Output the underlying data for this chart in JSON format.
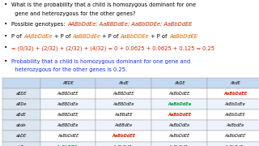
{
  "bg_color": "#ffffff",
  "text_blocks": [
    {
      "lines": [
        {
          "segs": [
            {
              "t": "What is the probability that a child is homozygous dominant for one",
              "c": "#000000",
              "i": false
            }
          ]
        },
        {
          "segs": [
            {
              "t": "  gene and heterozygous for the other genes?",
              "c": "#000000",
              "i": false
            }
          ]
        }
      ],
      "bullet": true
    },
    {
      "lines": [
        {
          "segs": [
            {
              "t": "Possible genotypes: ",
              "c": "#000000",
              "i": false
            },
            {
              "t": "AABbDdEe; AaBBDdEe; AaBbDDEe; AaBbDdEE",
              "c": "#cc2200",
              "i": true
            }
          ]
        }
      ],
      "bullet": true
    },
    {
      "lines": [
        {
          "segs": [
            {
              "t": "P of ",
              "c": "#000000",
              "i": false
            },
            {
              "t": "AABbDdEe",
              "c": "#dd6600",
              "i": true
            },
            {
              "t": " + P of ",
              "c": "#000000",
              "i": false
            },
            {
              "t": "AaBBDdEe",
              "c": "#dd6600",
              "i": true
            },
            {
              "t": " + P of ",
              "c": "#000000",
              "i": false
            },
            {
              "t": "AaBbDDEe",
              "c": "#dd6600",
              "i": true
            },
            {
              "t": " + P of ",
              "c": "#000000",
              "i": false
            },
            {
              "t": "AaBbDdEE",
              "c": "#dd6600",
              "i": true
            }
          ]
        }
      ],
      "bullet": true
    },
    {
      "lines": [
        {
          "segs": [
            {
              "t": "= (0/32) + (2/32) + (2/32) + (4/32) = 0 + 0.0625 + 0.0625 + 0.125 = 0.25",
              "c": "#cc2200",
              "i": false
            }
          ]
        }
      ],
      "bullet": true
    },
    {
      "lines": [
        {
          "segs": [
            {
              "t": "Probability that a child is homozygous dominant for one gene and",
              "c": "#1133cc",
              "i": false
            }
          ]
        },
        {
          "segs": [
            {
              "t": "  heterozygous for the other genes is 0.25.",
              "c": "#1133cc",
              "i": false
            }
          ]
        }
      ],
      "bullet": true
    }
  ],
  "table": {
    "col_headers": [
      "",
      "ABDE",
      "AbdE",
      "AbDE",
      "AbdE"
    ],
    "row_headers": [
      "aBDE",
      "aBDe",
      "aBdE",
      "abde",
      "abDE",
      "abDe"
    ],
    "cells": [
      [
        "AaBBDdEE",
        "AaBBDdEE",
        "AaBbDdEE",
        "AaBbDdEE"
      ],
      [
        "AaBBDdEe",
        "AaBBDdEe",
        "AaBbDdEe",
        "AsBbDdEe"
      ],
      [
        "AaBBDdEE",
        "AaBBdEE",
        "AaBbDdEE",
        "AsBbDdEE"
      ],
      [
        "AaBBDdEe",
        "AsBBdEe",
        "AaBbDdEe",
        "AaBbdEe"
      ],
      [
        "AaBbDdEE",
        "AaBbDdEE",
        "AaBbDdEE",
        "AaBbDdEE"
      ],
      [
        "AaBbDDEe",
        "AaBbDdEe",
        "AaBbDdEe",
        "AaBbDdEe"
      ]
    ],
    "cell_colors": [
      [
        "#000000",
        "#000000",
        "#000000",
        "#cc2200"
      ],
      [
        "#000000",
        "#000000",
        "#009933",
        "#000000"
      ],
      [
        "#000000",
        "#000000",
        "#cc2200",
        "#000000"
      ],
      [
        "#000000",
        "#000000",
        "#000000",
        "#000000"
      ],
      [
        "#000000",
        "#cc2200",
        "#000000",
        "#000000"
      ],
      [
        "#009933",
        "#000000",
        "#000000",
        "#000000"
      ]
    ],
    "cell_bold": [
      [
        false,
        false,
        false,
        true
      ],
      [
        false,
        false,
        true,
        false
      ],
      [
        false,
        false,
        true,
        false
      ],
      [
        false,
        false,
        false,
        false
      ],
      [
        false,
        true,
        false,
        false
      ],
      [
        true,
        false,
        false,
        false
      ]
    ],
    "header_bg": "#c5d9f1",
    "row_header_bg": "#dce6f1",
    "cell_bg_even": "#edf3fc",
    "cell_bg_odd": "#ffffff"
  }
}
